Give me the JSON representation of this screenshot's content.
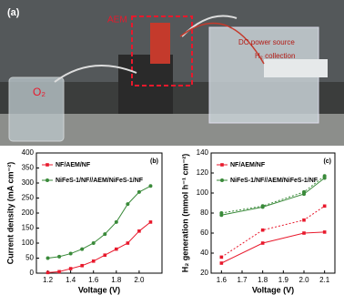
{
  "photo": {
    "panel_label": "(a)",
    "labels": [
      "AEM",
      "DC power source",
      "H₂ collection",
      "O₂"
    ]
  },
  "chart_data": [
    {
      "type": "line",
      "panel_label": "(b)",
      "x_label": "Voltage (V)",
      "y_label": "Current density (mA cm⁻²)",
      "x": [
        1.2,
        1.3,
        1.4,
        1.5,
        1.6,
        1.7,
        1.8,
        1.9,
        2.0,
        2.1
      ],
      "xlim": [
        1.1,
        2.2
      ],
      "xticks": [
        1.2,
        1.4,
        1.6,
        1.8,
        {
          "value": 2,
          "label": "2.0"
        }
      ],
      "ylim": [
        0,
        400
      ],
      "yticks": [
        0,
        50,
        100,
        150,
        200,
        250,
        300,
        350,
        400
      ],
      "series": [
        {
          "name": "NF/AEM/NF",
          "color": "#e8192c",
          "marker": "square",
          "values": [
            2,
            5,
            15,
            25,
            40,
            60,
            80,
            100,
            140,
            170
          ]
        },
        {
          "name": "NiFeS-1/NF//AEM/NiFeS-1/NF",
          "color": "#3a8a3a",
          "marker": "circle",
          "values": [
            50,
            55,
            65,
            80,
            100,
            130,
            170,
            230,
            270,
            290
          ]
        }
      ]
    },
    {
      "type": "line",
      "panel_label": "(c)",
      "x_label": "Voltage (V)",
      "y_label": "H₂ generation (mmol h⁻¹ cm⁻²)",
      "x": [
        1.6,
        1.8,
        2.0,
        2.1
      ],
      "xlim": [
        1.55,
        2.15
      ],
      "xticks": [
        1.6,
        1.7,
        1.8,
        1.9,
        {
          "value": 2,
          "label": "2.0"
        },
        2.1
      ],
      "ylim": [
        20,
        140
      ],
      "yticks": [
        20,
        40,
        60,
        80,
        100,
        120,
        140
      ],
      "series": [
        {
          "name": "NF/AEM/NF",
          "color": "#e8192c",
          "marker": "square",
          "values": [
            30,
            50,
            60,
            61
          ],
          "dashed_values": [
            36,
            63,
            73,
            87
          ]
        },
        {
          "name": "NiFeS-1/NF//AEM/NiFeS-1/NF",
          "color": "#3a8a3a",
          "marker": "circle",
          "values": [
            78,
            86,
            99,
            115
          ],
          "dashed_values": [
            80,
            87,
            101,
            117
          ]
        }
      ]
    }
  ]
}
